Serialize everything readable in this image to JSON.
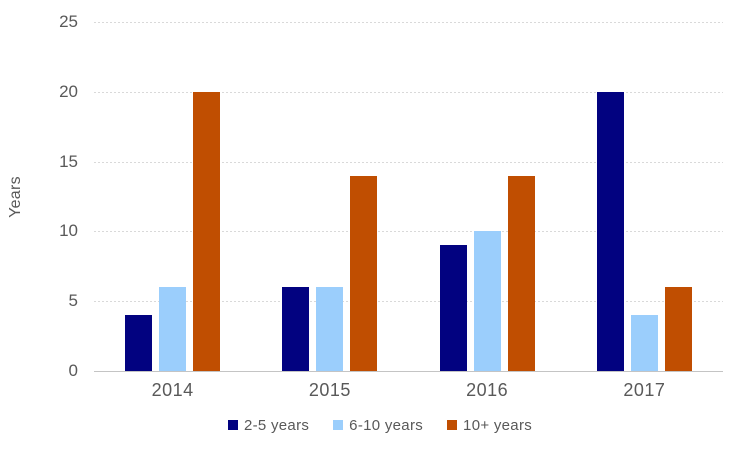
{
  "chart_data": {
    "type": "bar",
    "title": "",
    "xlabel": "",
    "ylabel": "Years",
    "categories": [
      "2014",
      "2015",
      "2016",
      "2017"
    ],
    "series": [
      {
        "name": "2-5 years",
        "color": "#020280",
        "values": [
          4,
          6,
          9,
          20
        ]
      },
      {
        "name": "6-10 years",
        "color": "#9BCEFC",
        "values": [
          6,
          6,
          10,
          4
        ]
      },
      {
        "name": "10+ years",
        "color": "#C04E01",
        "values": [
          20,
          14,
          14,
          6
        ]
      }
    ],
    "ylim": [
      0,
      25
    ],
    "yticks": [
      0,
      5,
      10,
      15,
      20,
      25
    ],
    "grid": "horizontal-dashed",
    "gridline_color": "#D9D9D9",
    "axis_line_color": "#C4C4C4",
    "tick_label_color": "#595959",
    "legend_position": "bottom"
  }
}
